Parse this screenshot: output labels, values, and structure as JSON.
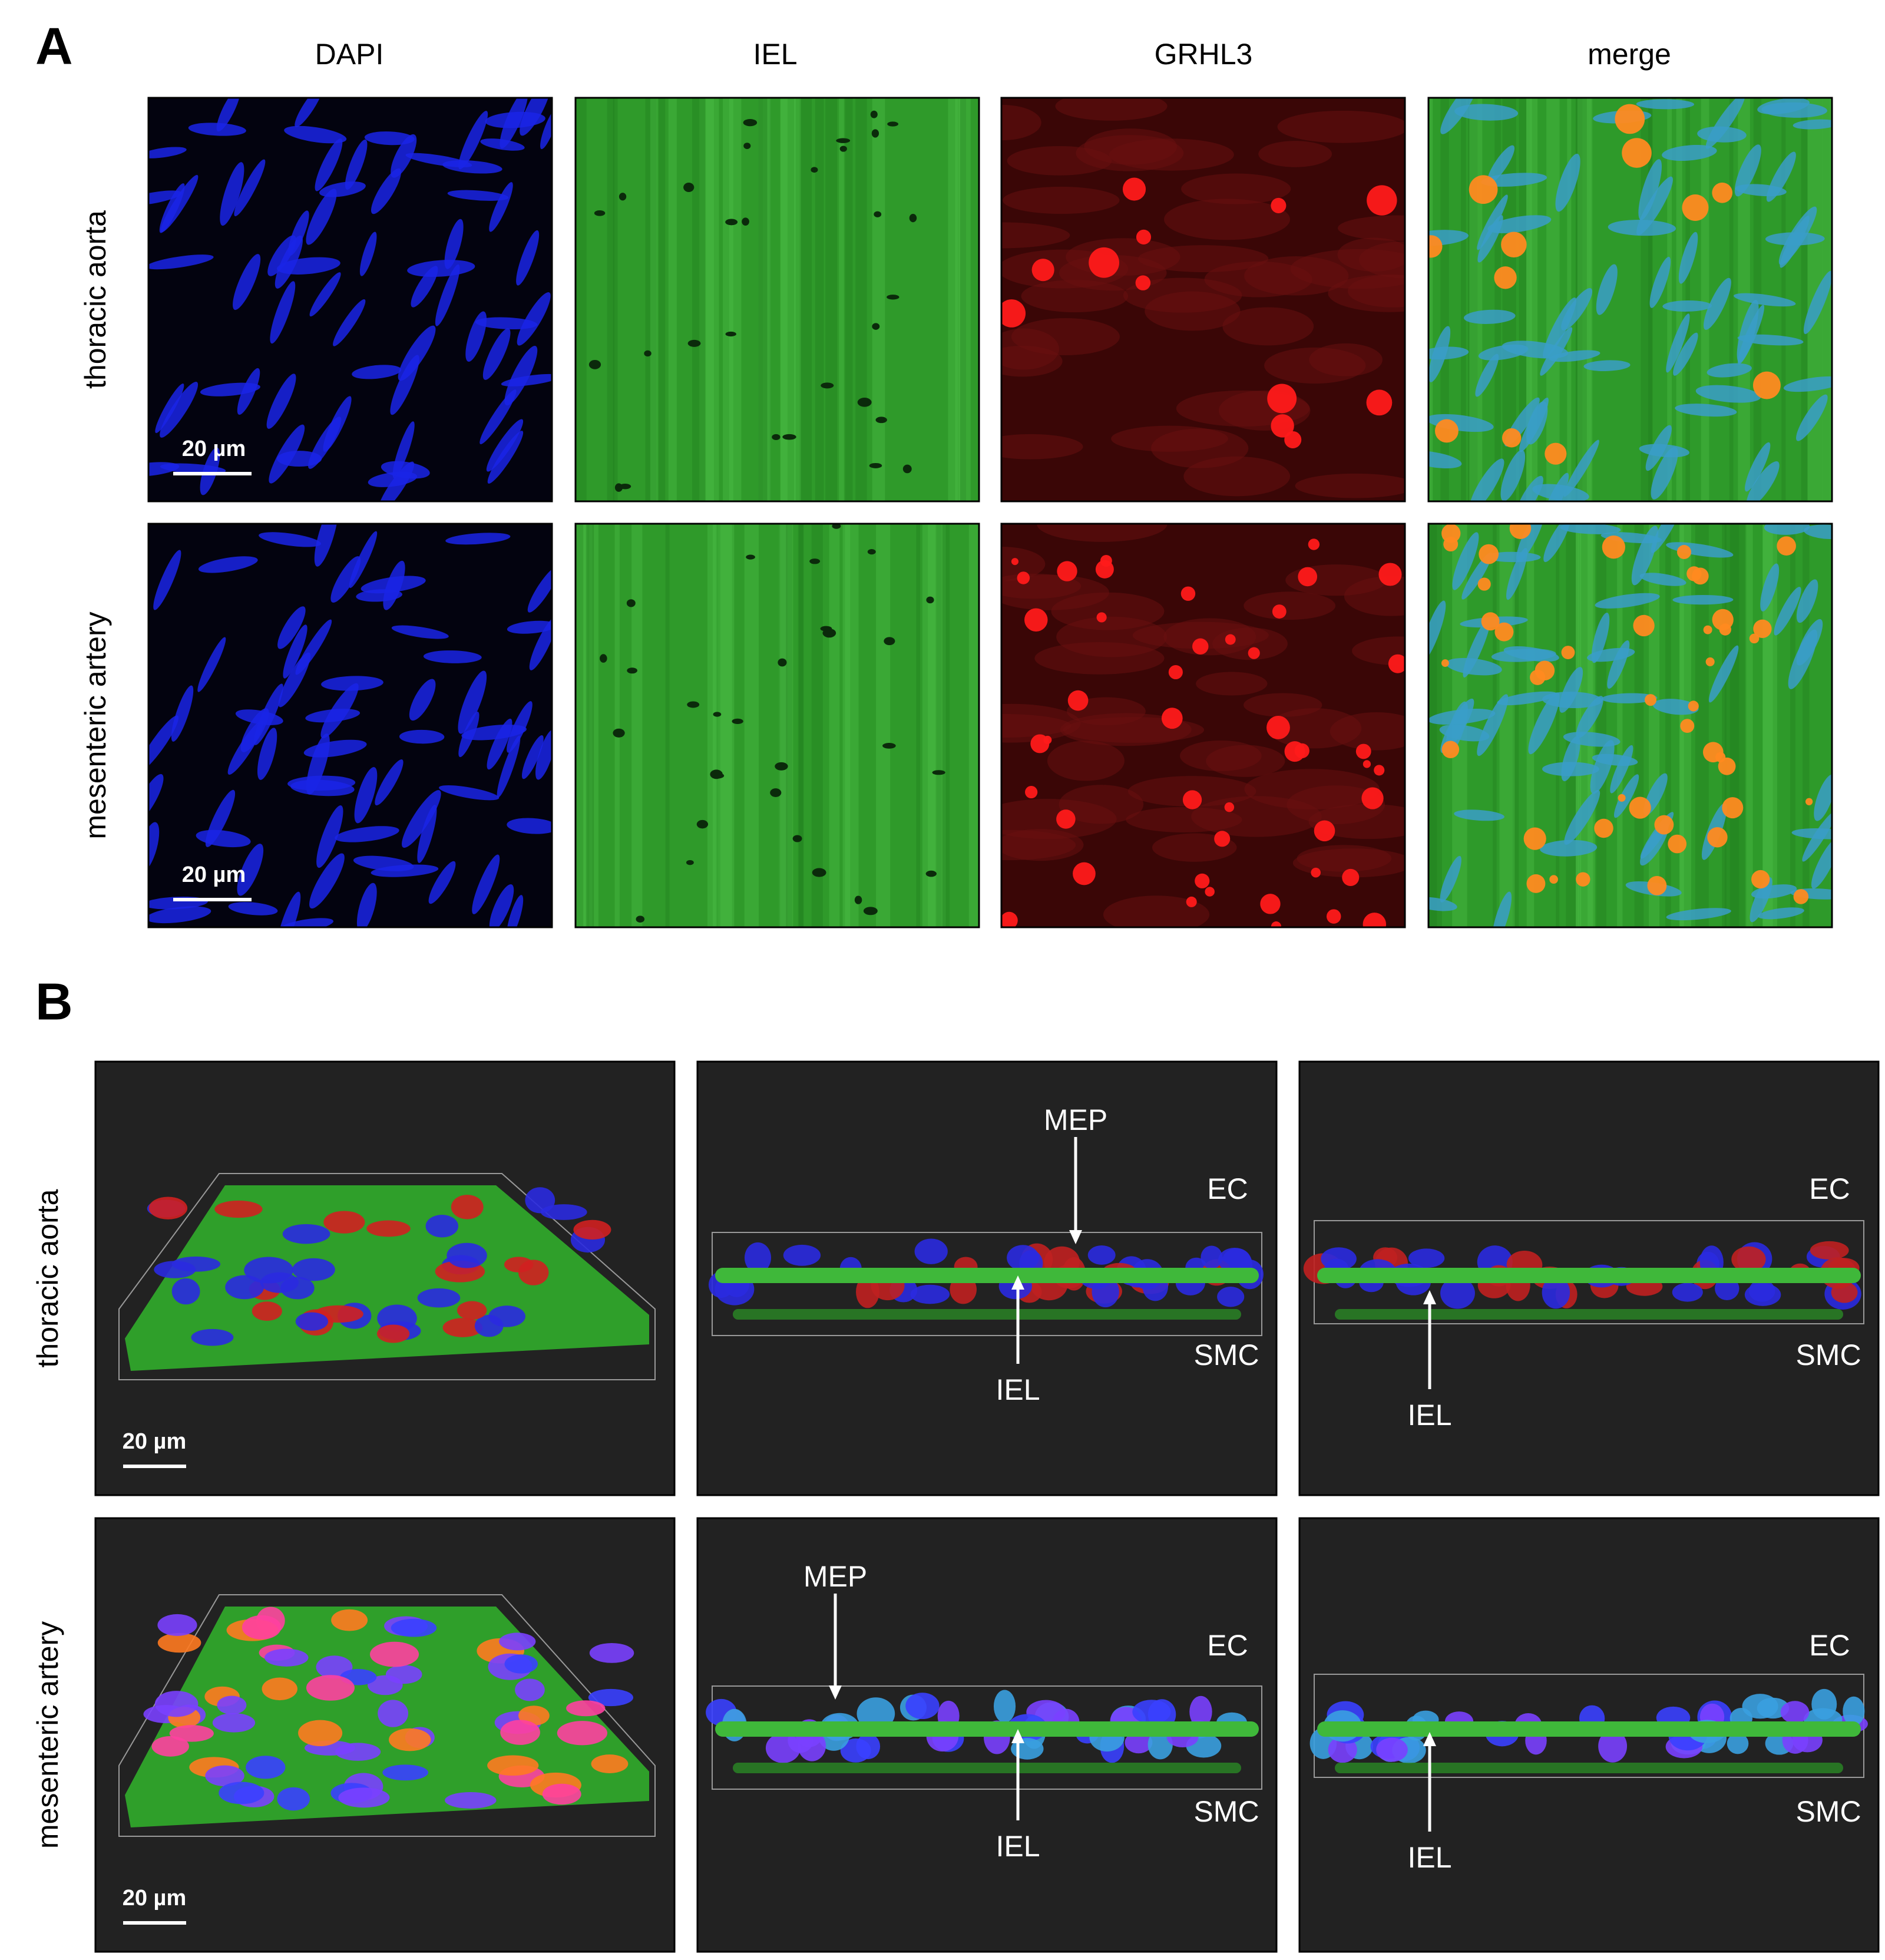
{
  "panel_a": {
    "label": "A",
    "columns": [
      "DAPI",
      "IEL",
      "GRHL3",
      "merge"
    ],
    "rows": [
      {
        "label": "thoracic aorta",
        "scale_bar": "20 µm"
      },
      {
        "label": "mesenteric artery",
        "scale_bar": "20 µm"
      }
    ]
  },
  "panel_b": {
    "label": "B",
    "rows": [
      {
        "label": "thoracic aorta",
        "scale_bar": "20 µm",
        "views": [
          {
            "mep": "MEP",
            "ec": "EC",
            "smc": "SMC",
            "iel": "IEL"
          },
          {
            "ec": "EC",
            "smc": "SMC",
            "iel": "IEL"
          }
        ]
      },
      {
        "label": "mesenteric artery",
        "scale_bar": "20 µm",
        "views": [
          {
            "mep": "MEP",
            "ec": "EC",
            "smc": "SMC",
            "iel": "IEL"
          },
          {
            "ec": "EC",
            "smc": "SMC",
            "iel": "IEL"
          }
        ]
      }
    ]
  }
}
